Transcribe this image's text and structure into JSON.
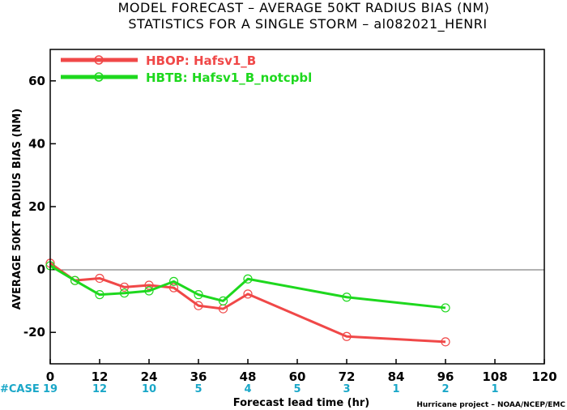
{
  "chart_data": {
    "type": "line",
    "title_line1": "MODEL FORECAST – AVERAGE 50KT RADIUS BIAS (NM)",
    "title_line2": "STATISTICS FOR A SINGLE STORM – al082021_HENRI",
    "xlabel": "Forecast lead time (hr)",
    "ylabel": "AVERAGE 50KT RADIUS BIAS (NM)",
    "xlim": [
      0,
      120
    ],
    "ylim": [
      -30,
      70
    ],
    "xticks": [
      "0",
      "12",
      "24",
      "36",
      "48",
      "60",
      "72",
      "84",
      "96",
      "108",
      "120"
    ],
    "yticks": [
      "-20",
      "0",
      "20",
      "40",
      "60"
    ],
    "zero_line": true,
    "grid": false,
    "legend_position": "top-left",
    "case_label": "#CASE",
    "cases": [
      {
        "x": 0,
        "n": "19"
      },
      {
        "x": 12,
        "n": "12"
      },
      {
        "x": 24,
        "n": "10"
      },
      {
        "x": 36,
        "n": "5"
      },
      {
        "x": 48,
        "n": "4"
      },
      {
        "x": 60,
        "n": "5"
      },
      {
        "x": 72,
        "n": "3"
      },
      {
        "x": 84,
        "n": "1"
      },
      {
        "x": 96,
        "n": "2"
      },
      {
        "x": 108,
        "n": "1"
      }
    ],
    "series": [
      {
        "name": "HBOP: Hafsv1_B",
        "color": "#f04848",
        "x": [
          0,
          6,
          12,
          18,
          24,
          30,
          36,
          42,
          48,
          72,
          96
        ],
        "y": [
          2,
          -3.5,
          -2.8,
          -5.6,
          -5,
          -5.8,
          -11.5,
          -12.5,
          -7.8,
          -21.3,
          -23
        ]
      },
      {
        "name": "HBTB: Hafsv1_B_notcpbl",
        "color": "#1ed81e",
        "x": [
          0,
          6,
          12,
          18,
          24,
          30,
          36,
          42,
          48,
          72,
          96
        ],
        "y": [
          1.2,
          -3.5,
          -8,
          -7.5,
          -6.8,
          -3.8,
          -8,
          -10,
          -3,
          -8.8,
          -12.2
        ]
      }
    ],
    "credit": "Hurricane project – NOAA/NCEP/EMC",
    "colors": {
      "case_text": "#1aa7c8",
      "zero_line": "#666666"
    }
  }
}
